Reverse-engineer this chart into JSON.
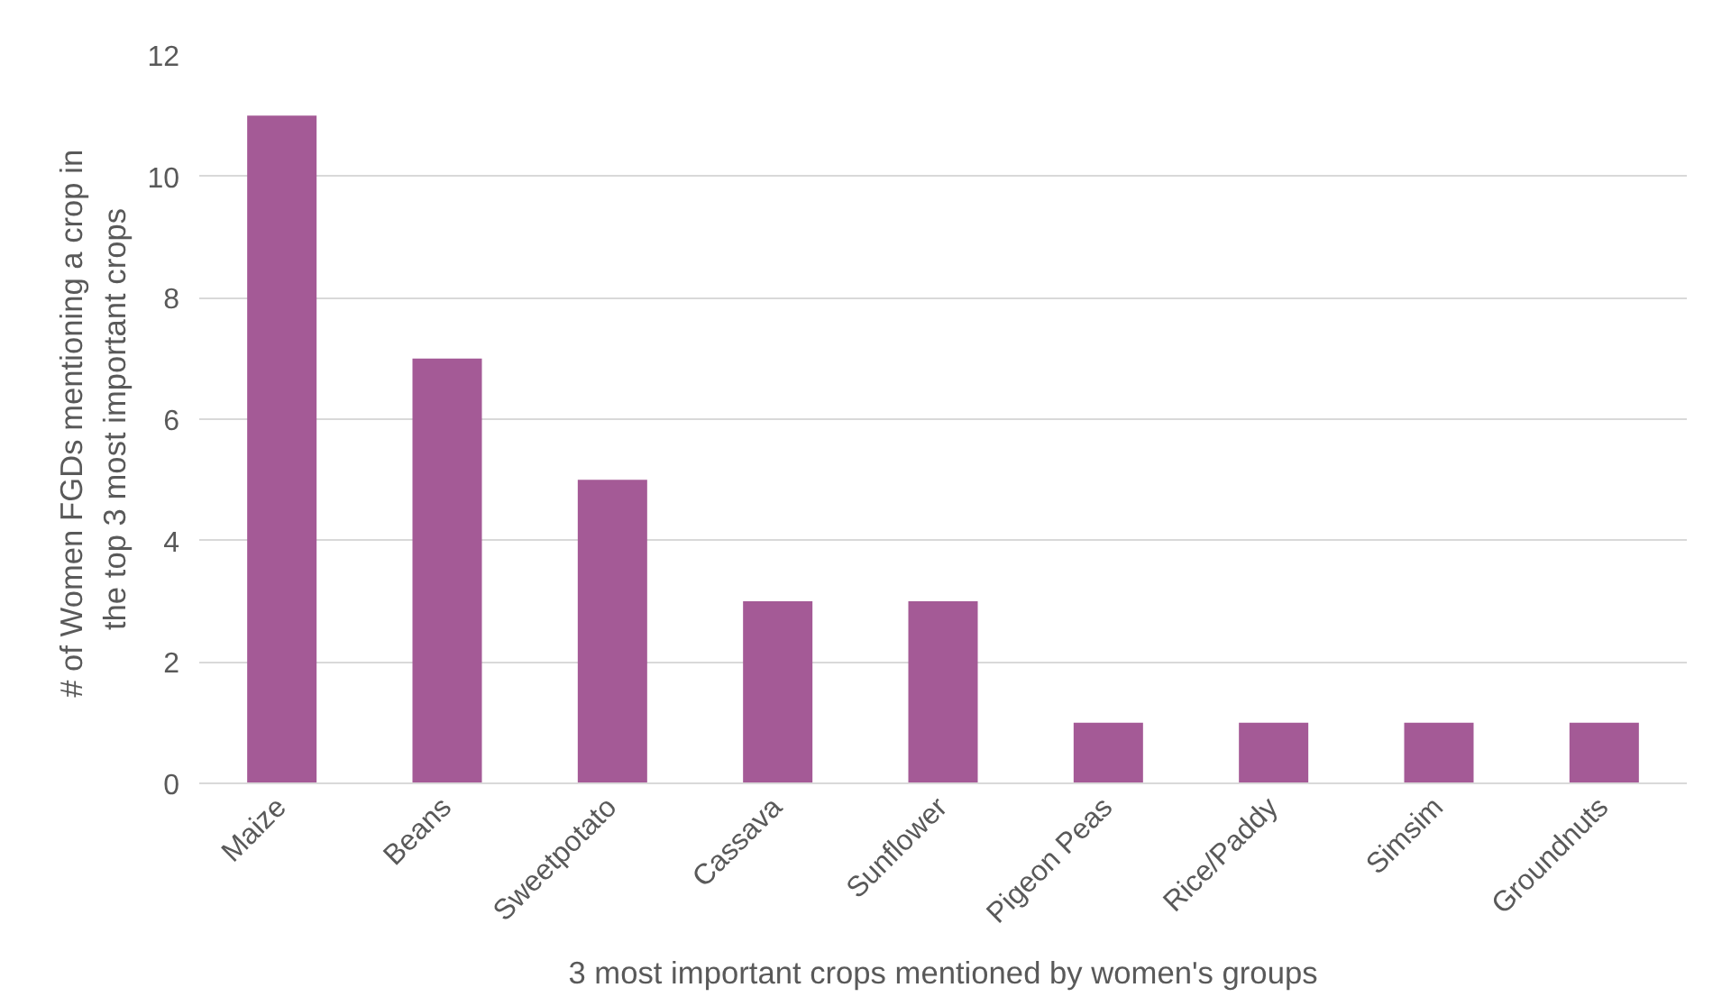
{
  "chart_data": {
    "type": "bar",
    "xlabel": "3 most important crops mentioned by women's groups",
    "ylabel": "# of  Women FGDs mentioning a crop in\nthe top 3 most important crops",
    "categories": [
      "Maize",
      "Beans",
      "Sweetpotato",
      "Cassava",
      "Sunflower",
      "Pigeon Peas",
      "Rice/Paddy",
      "Simsim",
      "Groundnuts"
    ],
    "values": [
      11,
      7,
      5,
      3,
      3,
      1,
      1,
      1,
      1
    ],
    "color": "#a45a96",
    "ylim": [
      0,
      12
    ],
    "yticks": [
      0,
      2,
      4,
      6,
      8,
      10,
      12
    ],
    "grid": "y"
  }
}
